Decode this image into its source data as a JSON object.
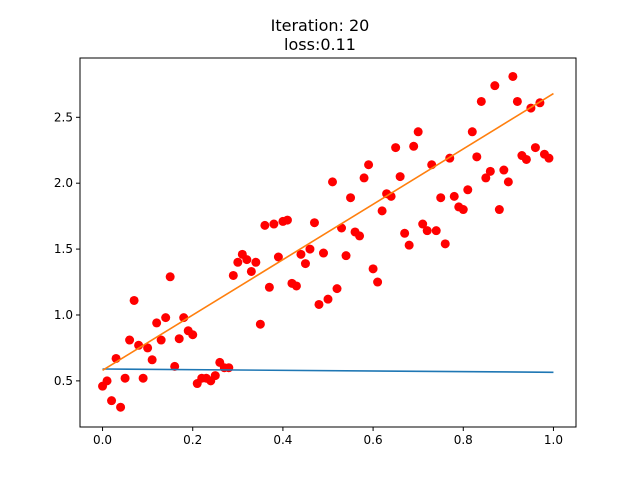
{
  "chart_data": {
    "type": "scatter",
    "title_line1": "Iteration: 20",
    "title_line2": "loss:0.11",
    "xlabel": "",
    "ylabel": "",
    "xlim": [
      -0.05,
      1.05
    ],
    "ylim": [
      0.15,
      2.95
    ],
    "grid": false,
    "x_ticks": [
      0.0,
      0.2,
      0.4,
      0.6,
      0.8,
      1.0
    ],
    "x_tick_labels": [
      "0.0",
      "0.2",
      "0.4",
      "0.6",
      "0.8",
      "1.0"
    ],
    "y_ticks": [
      0.5,
      1.0,
      1.5,
      2.0,
      2.5
    ],
    "y_tick_labels": [
      "0.5",
      "1.0",
      "1.5",
      "2.0",
      "2.5"
    ],
    "scatter": {
      "name": "data",
      "color": "#ff0000",
      "points": [
        [
          0.0,
          0.46
        ],
        [
          0.01,
          0.5
        ],
        [
          0.02,
          0.35
        ],
        [
          0.03,
          0.67
        ],
        [
          0.04,
          0.3
        ],
        [
          0.05,
          0.52
        ],
        [
          0.06,
          0.81
        ],
        [
          0.07,
          1.11
        ],
        [
          0.08,
          0.77
        ],
        [
          0.09,
          0.52
        ],
        [
          0.1,
          0.75
        ],
        [
          0.11,
          0.66
        ],
        [
          0.12,
          0.94
        ],
        [
          0.13,
          0.81
        ],
        [
          0.14,
          0.98
        ],
        [
          0.15,
          1.29
        ],
        [
          0.16,
          0.61
        ],
        [
          0.17,
          0.82
        ],
        [
          0.18,
          0.98
        ],
        [
          0.19,
          0.88
        ],
        [
          0.2,
          0.85
        ],
        [
          0.21,
          0.48
        ],
        [
          0.22,
          0.52
        ],
        [
          0.23,
          0.52
        ],
        [
          0.24,
          0.5
        ],
        [
          0.25,
          0.54
        ],
        [
          0.26,
          0.64
        ],
        [
          0.27,
          0.6
        ],
        [
          0.28,
          0.6
        ],
        [
          0.29,
          1.3
        ],
        [
          0.3,
          1.4
        ],
        [
          0.31,
          1.46
        ],
        [
          0.32,
          1.42
        ],
        [
          0.33,
          1.33
        ],
        [
          0.34,
          1.4
        ],
        [
          0.35,
          0.93
        ],
        [
          0.36,
          1.68
        ],
        [
          0.37,
          1.21
        ],
        [
          0.38,
          1.69
        ],
        [
          0.39,
          1.44
        ],
        [
          0.4,
          1.71
        ],
        [
          0.41,
          1.72
        ],
        [
          0.42,
          1.24
        ],
        [
          0.43,
          1.22
        ],
        [
          0.44,
          1.46
        ],
        [
          0.45,
          1.39
        ],
        [
          0.46,
          1.5
        ],
        [
          0.47,
          1.7
        ],
        [
          0.48,
          1.08
        ],
        [
          0.49,
          1.47
        ],
        [
          0.5,
          1.12
        ],
        [
          0.51,
          2.01
        ],
        [
          0.52,
          1.2
        ],
        [
          0.53,
          1.66
        ],
        [
          0.54,
          1.45
        ],
        [
          0.55,
          1.89
        ],
        [
          0.56,
          1.63
        ],
        [
          0.57,
          1.6
        ],
        [
          0.58,
          2.04
        ],
        [
          0.59,
          2.14
        ],
        [
          0.6,
          1.35
        ],
        [
          0.61,
          1.25
        ],
        [
          0.62,
          1.79
        ],
        [
          0.63,
          1.92
        ],
        [
          0.64,
          1.9
        ],
        [
          0.65,
          2.27
        ],
        [
          0.66,
          2.05
        ],
        [
          0.67,
          1.62
        ],
        [
          0.68,
          1.53
        ],
        [
          0.69,
          2.28
        ],
        [
          0.7,
          2.39
        ],
        [
          0.71,
          1.69
        ],
        [
          0.72,
          1.64
        ],
        [
          0.73,
          2.14
        ],
        [
          0.74,
          1.64
        ],
        [
          0.75,
          1.89
        ],
        [
          0.76,
          1.54
        ],
        [
          0.77,
          2.19
        ],
        [
          0.78,
          1.9
        ],
        [
          0.79,
          1.82
        ],
        [
          0.8,
          1.8
        ],
        [
          0.81,
          1.95
        ],
        [
          0.82,
          2.39
        ],
        [
          0.83,
          2.2
        ],
        [
          0.84,
          2.62
        ],
        [
          0.85,
          2.04
        ],
        [
          0.86,
          2.09
        ],
        [
          0.87,
          2.74
        ],
        [
          0.88,
          1.8
        ],
        [
          0.89,
          2.1
        ],
        [
          0.9,
          2.01
        ],
        [
          0.91,
          2.81
        ],
        [
          0.92,
          2.62
        ],
        [
          0.93,
          2.21
        ],
        [
          0.94,
          2.18
        ],
        [
          0.95,
          2.57
        ],
        [
          0.96,
          2.27
        ],
        [
          0.97,
          2.61
        ],
        [
          0.98,
          2.22
        ],
        [
          0.99,
          2.19
        ]
      ]
    },
    "lines": [
      {
        "name": "initial-fit-line",
        "color": "#1f77b4",
        "x": [
          0.0,
          1.0
        ],
        "y": [
          0.59,
          0.565
        ]
      },
      {
        "name": "current-fit-line",
        "color": "#ff7f0e",
        "x": [
          0.0,
          1.0
        ],
        "y": [
          0.58,
          2.68
        ]
      }
    ]
  }
}
